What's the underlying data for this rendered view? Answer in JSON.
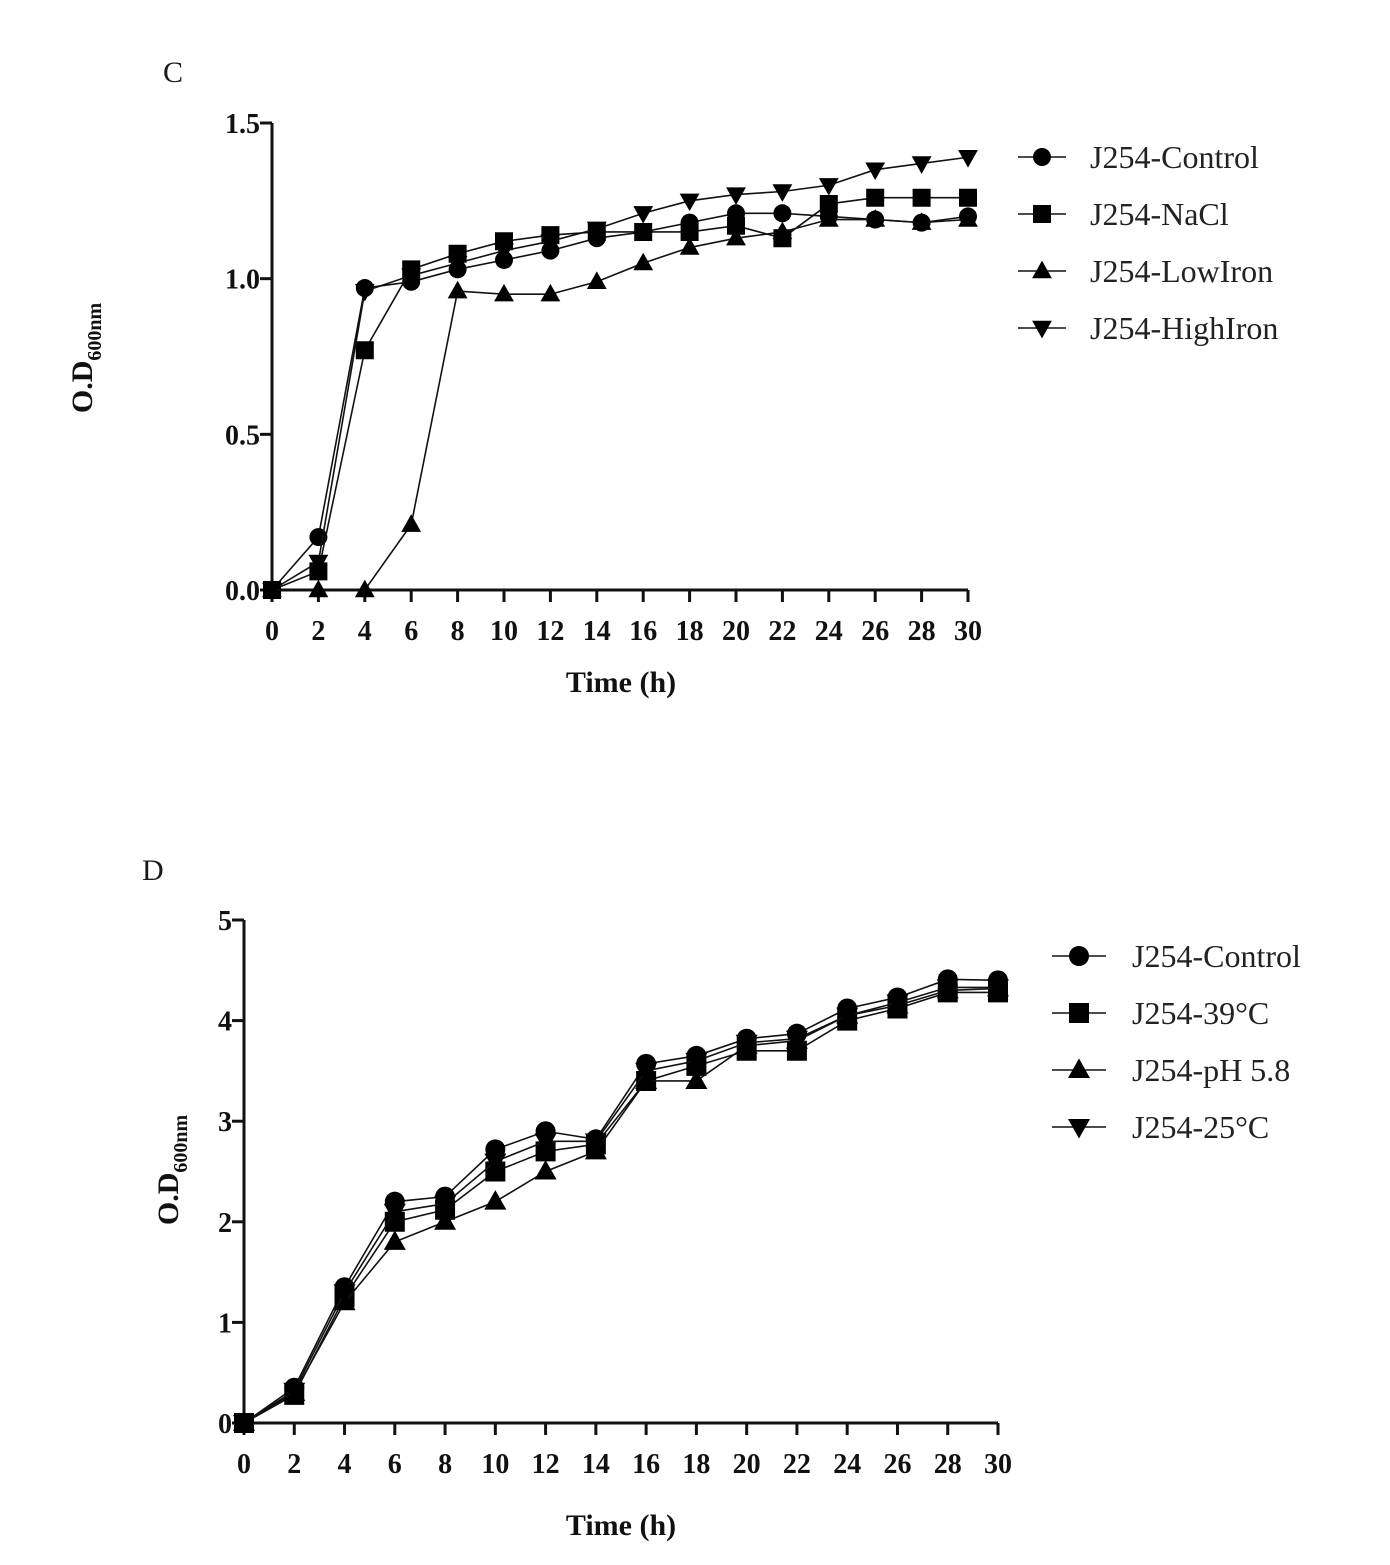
{
  "chart_data": [
    {
      "type": "line",
      "panel": "C",
      "xlabel": "Time (h)",
      "ylabel": "O.D",
      "ylabel_sub": "600nm",
      "x": [
        0,
        2,
        4,
        6,
        8,
        10,
        12,
        14,
        16,
        18,
        20,
        22,
        24,
        26,
        28,
        30
      ],
      "xticks": [
        "0",
        "2",
        "4",
        "6",
        "8",
        "10",
        "12",
        "14",
        "16",
        "18",
        "20",
        "22",
        "24",
        "26",
        "28",
        "30"
      ],
      "xlim": [
        0,
        30
      ],
      "ylim": [
        0,
        1.5
      ],
      "yticks": [
        0.0,
        0.5,
        1.0,
        1.5
      ],
      "ytick_labels": [
        "0.0",
        "0.5",
        "1.0",
        "1.5"
      ],
      "legend_position": "right",
      "series": [
        {
          "name": "J254-Control",
          "marker": "circle",
          "values": [
            0,
            0.17,
            0.97,
            0.99,
            1.03,
            1.06,
            1.09,
            1.13,
            1.15,
            1.18,
            1.21,
            1.21,
            1.2,
            1.19,
            1.18,
            1.2
          ]
        },
        {
          "name": "J254-NaCl",
          "marker": "square",
          "values": [
            0,
            0.06,
            0.77,
            1.03,
            1.08,
            1.12,
            1.14,
            1.15,
            1.15,
            1.15,
            1.17,
            1.13,
            1.24,
            1.26,
            1.26,
            1.26
          ]
        },
        {
          "name": "J254-LowIron",
          "marker": "triangle-up",
          "values": [
            0,
            0,
            0,
            0.21,
            0.96,
            0.95,
            0.95,
            0.99,
            1.05,
            1.1,
            1.13,
            1.15,
            1.19,
            1.19,
            1.18,
            1.19
          ]
        },
        {
          "name": "J254-HighIron",
          "marker": "triangle-down",
          "values": [
            0,
            0.09,
            0.96,
            1.01,
            1.05,
            1.09,
            1.12,
            1.16,
            1.21,
            1.25,
            1.27,
            1.28,
            1.3,
            1.35,
            1.37,
            1.39
          ]
        }
      ]
    },
    {
      "type": "line",
      "panel": "D",
      "xlabel": "Time (h)",
      "ylabel": "O.D",
      "ylabel_sub": "600nm",
      "x": [
        0,
        2,
        4,
        6,
        8,
        10,
        12,
        14,
        16,
        18,
        20,
        22,
        24,
        26,
        28,
        30
      ],
      "xticks": [
        "0",
        "2",
        "4",
        "6",
        "8",
        "10",
        "12",
        "14",
        "16",
        "18",
        "20",
        "22",
        "24",
        "26",
        "28",
        "30"
      ],
      "xlim": [
        0,
        30
      ],
      "ylim": [
        0,
        5
      ],
      "yticks": [
        0,
        1,
        2,
        3,
        4,
        5
      ],
      "ytick_labels": [
        "0",
        "1",
        "2",
        "3",
        "4",
        "5"
      ],
      "legend_position": "right",
      "series": [
        {
          "name": "J254-Control",
          "marker": "circle",
          "values": [
            0,
            0.35,
            1.35,
            2.2,
            2.25,
            2.72,
            2.9,
            2.82,
            3.57,
            3.65,
            3.82,
            3.87,
            4.12,
            4.23,
            4.41,
            4.4
          ]
        },
        {
          "name": "J254-39°C",
          "marker": "square",
          "values": [
            0,
            0.28,
            1.25,
            2.0,
            2.12,
            2.5,
            2.7,
            2.77,
            3.4,
            3.55,
            3.7,
            3.7,
            4.0,
            4.12,
            4.28,
            4.28
          ]
        },
        {
          "name": "J254-pH 5.8",
          "marker": "triangle-up",
          "values": [
            0,
            0.3,
            1.2,
            1.8,
            2.0,
            2.2,
            2.5,
            2.7,
            3.4,
            3.4,
            3.75,
            3.8,
            4.05,
            4.15,
            4.3,
            4.32
          ]
        },
        {
          "name": "J254-25°C",
          "marker": "triangle-down",
          "values": [
            0,
            0.32,
            1.3,
            2.1,
            2.18,
            2.6,
            2.8,
            2.8,
            3.5,
            3.6,
            3.78,
            3.82,
            4.05,
            4.18,
            4.33,
            4.33
          ]
        }
      ]
    }
  ]
}
